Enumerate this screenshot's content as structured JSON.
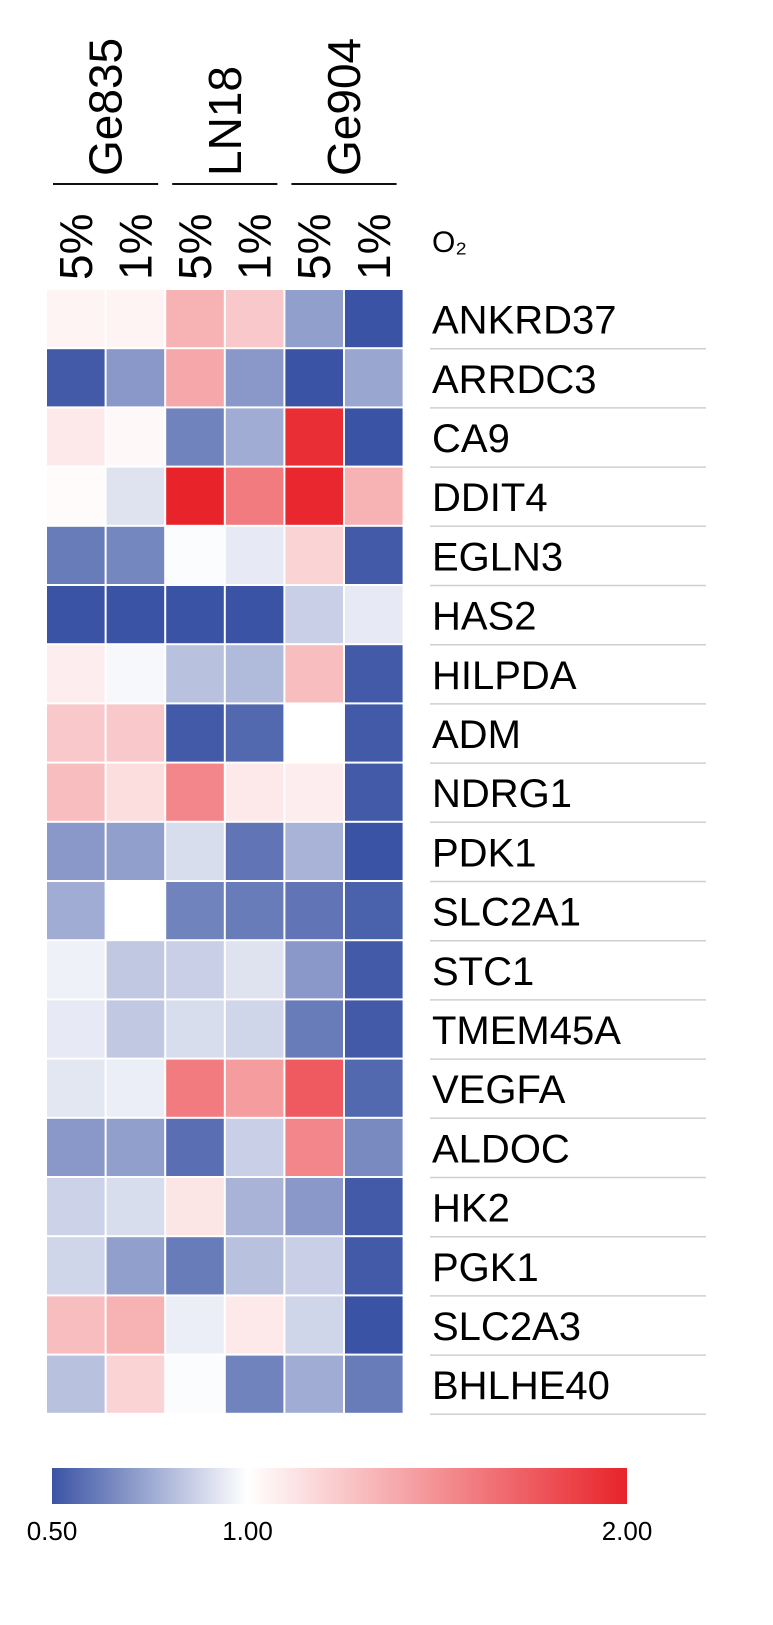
{
  "chart_data": {
    "type": "heatmap",
    "groups": [
      "Ge835",
      "LN18",
      "Ge904"
    ],
    "columns": [
      "5%",
      "1%",
      "5%",
      "1%",
      "5%",
      "1%"
    ],
    "column_group_index": [
      0,
      0,
      1,
      1,
      2,
      2
    ],
    "column_axis_label": "O₂",
    "rows": [
      "ANKRD37",
      "ARRDC3",
      "CA9",
      "DDIT4",
      "EGLN3",
      "HAS2",
      "HILPDA",
      "ADM",
      "NDRG1",
      "PDK1",
      "SLC2A1",
      "STC1",
      "TMEM45A",
      "VEGFA",
      "ALDOC",
      "HK2",
      "PGK1",
      "SLC2A3",
      "BHLHE40"
    ],
    "values": [
      [
        1.05,
        1.05,
        1.35,
        1.25,
        0.72,
        0.5
      ],
      [
        0.52,
        0.7,
        1.4,
        0.7,
        0.5,
        0.74
      ],
      [
        1.1,
        1.03,
        0.64,
        0.76,
        1.95,
        0.5
      ],
      [
        1.02,
        0.92,
        2.0,
        1.6,
        1.98,
        1.35
      ],
      [
        0.62,
        0.65,
        0.99,
        0.94,
        1.2,
        0.52
      ],
      [
        0.5,
        0.5,
        0.5,
        0.5,
        0.86,
        0.94
      ],
      [
        1.08,
        0.98,
        0.82,
        0.8,
        1.3,
        0.52
      ],
      [
        1.25,
        1.25,
        0.52,
        0.56,
        1.0,
        0.52
      ],
      [
        1.3,
        1.15,
        1.55,
        1.1,
        1.08,
        0.52
      ],
      [
        0.7,
        0.72,
        0.9,
        0.6,
        0.78,
        0.5
      ],
      [
        0.76,
        1.0,
        0.64,
        0.62,
        0.6,
        0.54
      ],
      [
        0.96,
        0.84,
        0.86,
        0.92,
        0.7,
        0.52
      ],
      [
        0.94,
        0.84,
        0.9,
        0.88,
        0.62,
        0.52
      ],
      [
        0.93,
        0.95,
        1.6,
        1.45,
        1.75,
        0.56
      ],
      [
        0.7,
        0.72,
        0.58,
        0.86,
        1.55,
        0.66
      ],
      [
        0.87,
        0.9,
        1.12,
        0.78,
        0.7,
        0.52
      ],
      [
        0.88,
        0.72,
        0.62,
        0.82,
        0.86,
        0.52
      ],
      [
        1.3,
        1.35,
        0.95,
        1.1,
        0.88,
        0.5
      ],
      [
        0.82,
        1.2,
        0.99,
        0.64,
        0.76,
        0.62
      ]
    ],
    "colorbar": {
      "min": 0.5,
      "mid": 1.0,
      "max": 2.0,
      "tick_labels": [
        "0.50",
        "1.00",
        "2.00"
      ],
      "colors": {
        "low": "#3a53a4",
        "mid": "#ffffff",
        "high": "#e8232a"
      }
    }
  }
}
